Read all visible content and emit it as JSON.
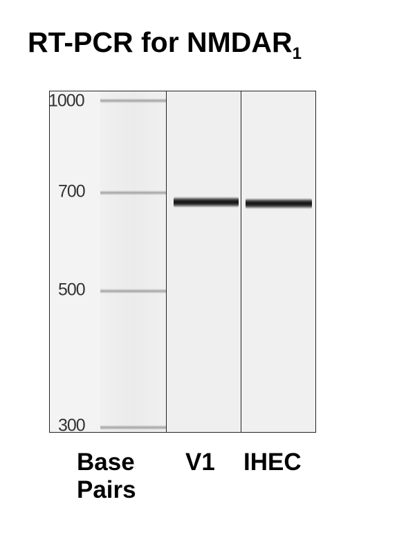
{
  "title": {
    "main": "RT-PCR for NMDAR",
    "subscript": "1"
  },
  "gel": {
    "ladder_bands": [
      {
        "label": "1000",
        "bp": 1000
      },
      {
        "label": "700",
        "bp": 700
      },
      {
        "label": "500",
        "bp": 500
      },
      {
        "label": "300",
        "bp": 300
      }
    ],
    "lanes": [
      {
        "id": "ladder",
        "label_line1": "Base",
        "label_line2": "Pairs"
      },
      {
        "id": "v1",
        "label": "V1"
      },
      {
        "id": "ihec",
        "label": "IHEC"
      }
    ]
  },
  "colors": {
    "band": "#111111",
    "ladder_band": "#969696",
    "background": "#f1f1f1",
    "border": "#222222"
  }
}
